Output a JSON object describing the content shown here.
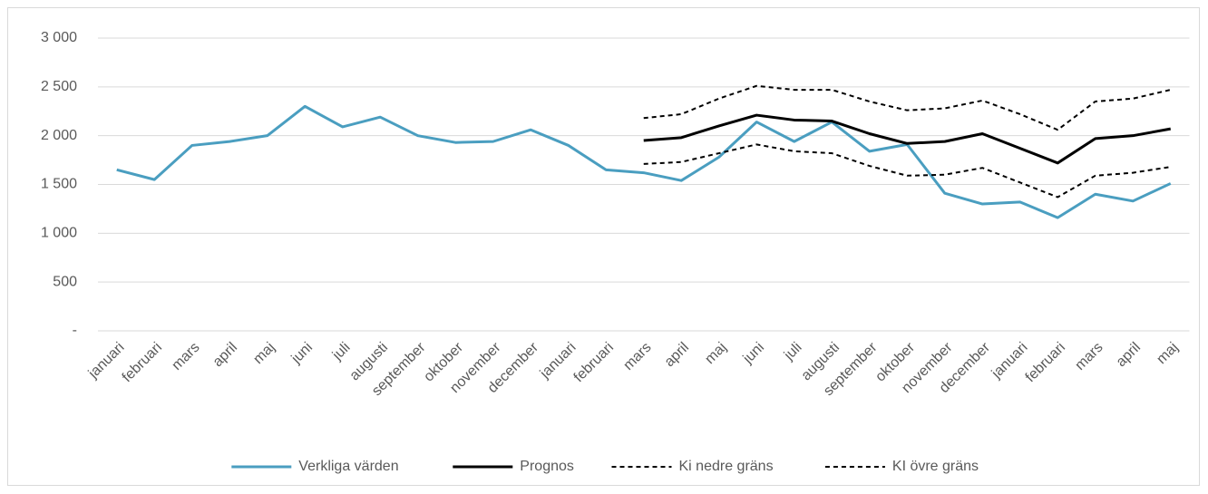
{
  "chart_data": {
    "type": "line",
    "categories": [
      "januari",
      "februari",
      "mars",
      "april",
      "maj",
      "juni",
      "juli",
      "augusti",
      "september",
      "oktober",
      "november",
      "december",
      "januari",
      "februari",
      "mars",
      "april",
      "maj",
      "juni",
      "juli",
      "augusti",
      "september",
      "oktober",
      "november",
      "december",
      "januari",
      "februari",
      "mars",
      "april",
      "maj"
    ],
    "series": [
      {
        "name": "Verkliga värden",
        "color": "#4a9ec0",
        "dashed": false,
        "values": [
          1650,
          1550,
          1900,
          1940,
          2000,
          2300,
          2090,
          2190,
          2000,
          1930,
          1940,
          2060,
          1900,
          1650,
          1620,
          1540,
          1780,
          2140,
          1940,
          2140,
          1840,
          1910,
          1410,
          1300,
          1320,
          1160,
          1400,
          1330,
          1510
        ]
      },
      {
        "name": "Prognos",
        "color": "#000000",
        "dashed": false,
        "values": [
          null,
          null,
          null,
          null,
          null,
          null,
          null,
          null,
          null,
          null,
          null,
          null,
          null,
          null,
          1950,
          1980,
          2100,
          2210,
          2160,
          2150,
          2020,
          1920,
          1940,
          2020,
          1870,
          1720,
          1970,
          2000,
          2070
        ]
      },
      {
        "name": "Ki nedre gräns",
        "color": "#000000",
        "dashed": true,
        "values": [
          null,
          null,
          null,
          null,
          null,
          null,
          null,
          null,
          null,
          null,
          null,
          null,
          null,
          null,
          1710,
          1730,
          1820,
          1910,
          1840,
          1820,
          1690,
          1590,
          1600,
          1670,
          1520,
          1370,
          1590,
          1620,
          1680
        ]
      },
      {
        "name": "KI övre gräns",
        "color": "#000000",
        "dashed": true,
        "values": [
          null,
          null,
          null,
          null,
          null,
          null,
          null,
          null,
          null,
          null,
          null,
          null,
          null,
          null,
          2180,
          2220,
          2380,
          2510,
          2470,
          2470,
          2350,
          2260,
          2280,
          2360,
          2220,
          2060,
          2350,
          2380,
          2470
        ]
      }
    ],
    "ylim": [
      0,
      3000
    ],
    "yticks": [
      {
        "value": 0,
        "label": "-"
      },
      500,
      {
        "value": 1000,
        "label": "1 000"
      },
      {
        "value": 1500,
        "label": "1 500"
      },
      {
        "value": 2000,
        "label": "2 000"
      },
      {
        "value": 2500,
        "label": "2 500"
      },
      {
        "value": 3000,
        "label": "3 000"
      }
    ],
    "grid": true,
    "legend": "bottom"
  }
}
